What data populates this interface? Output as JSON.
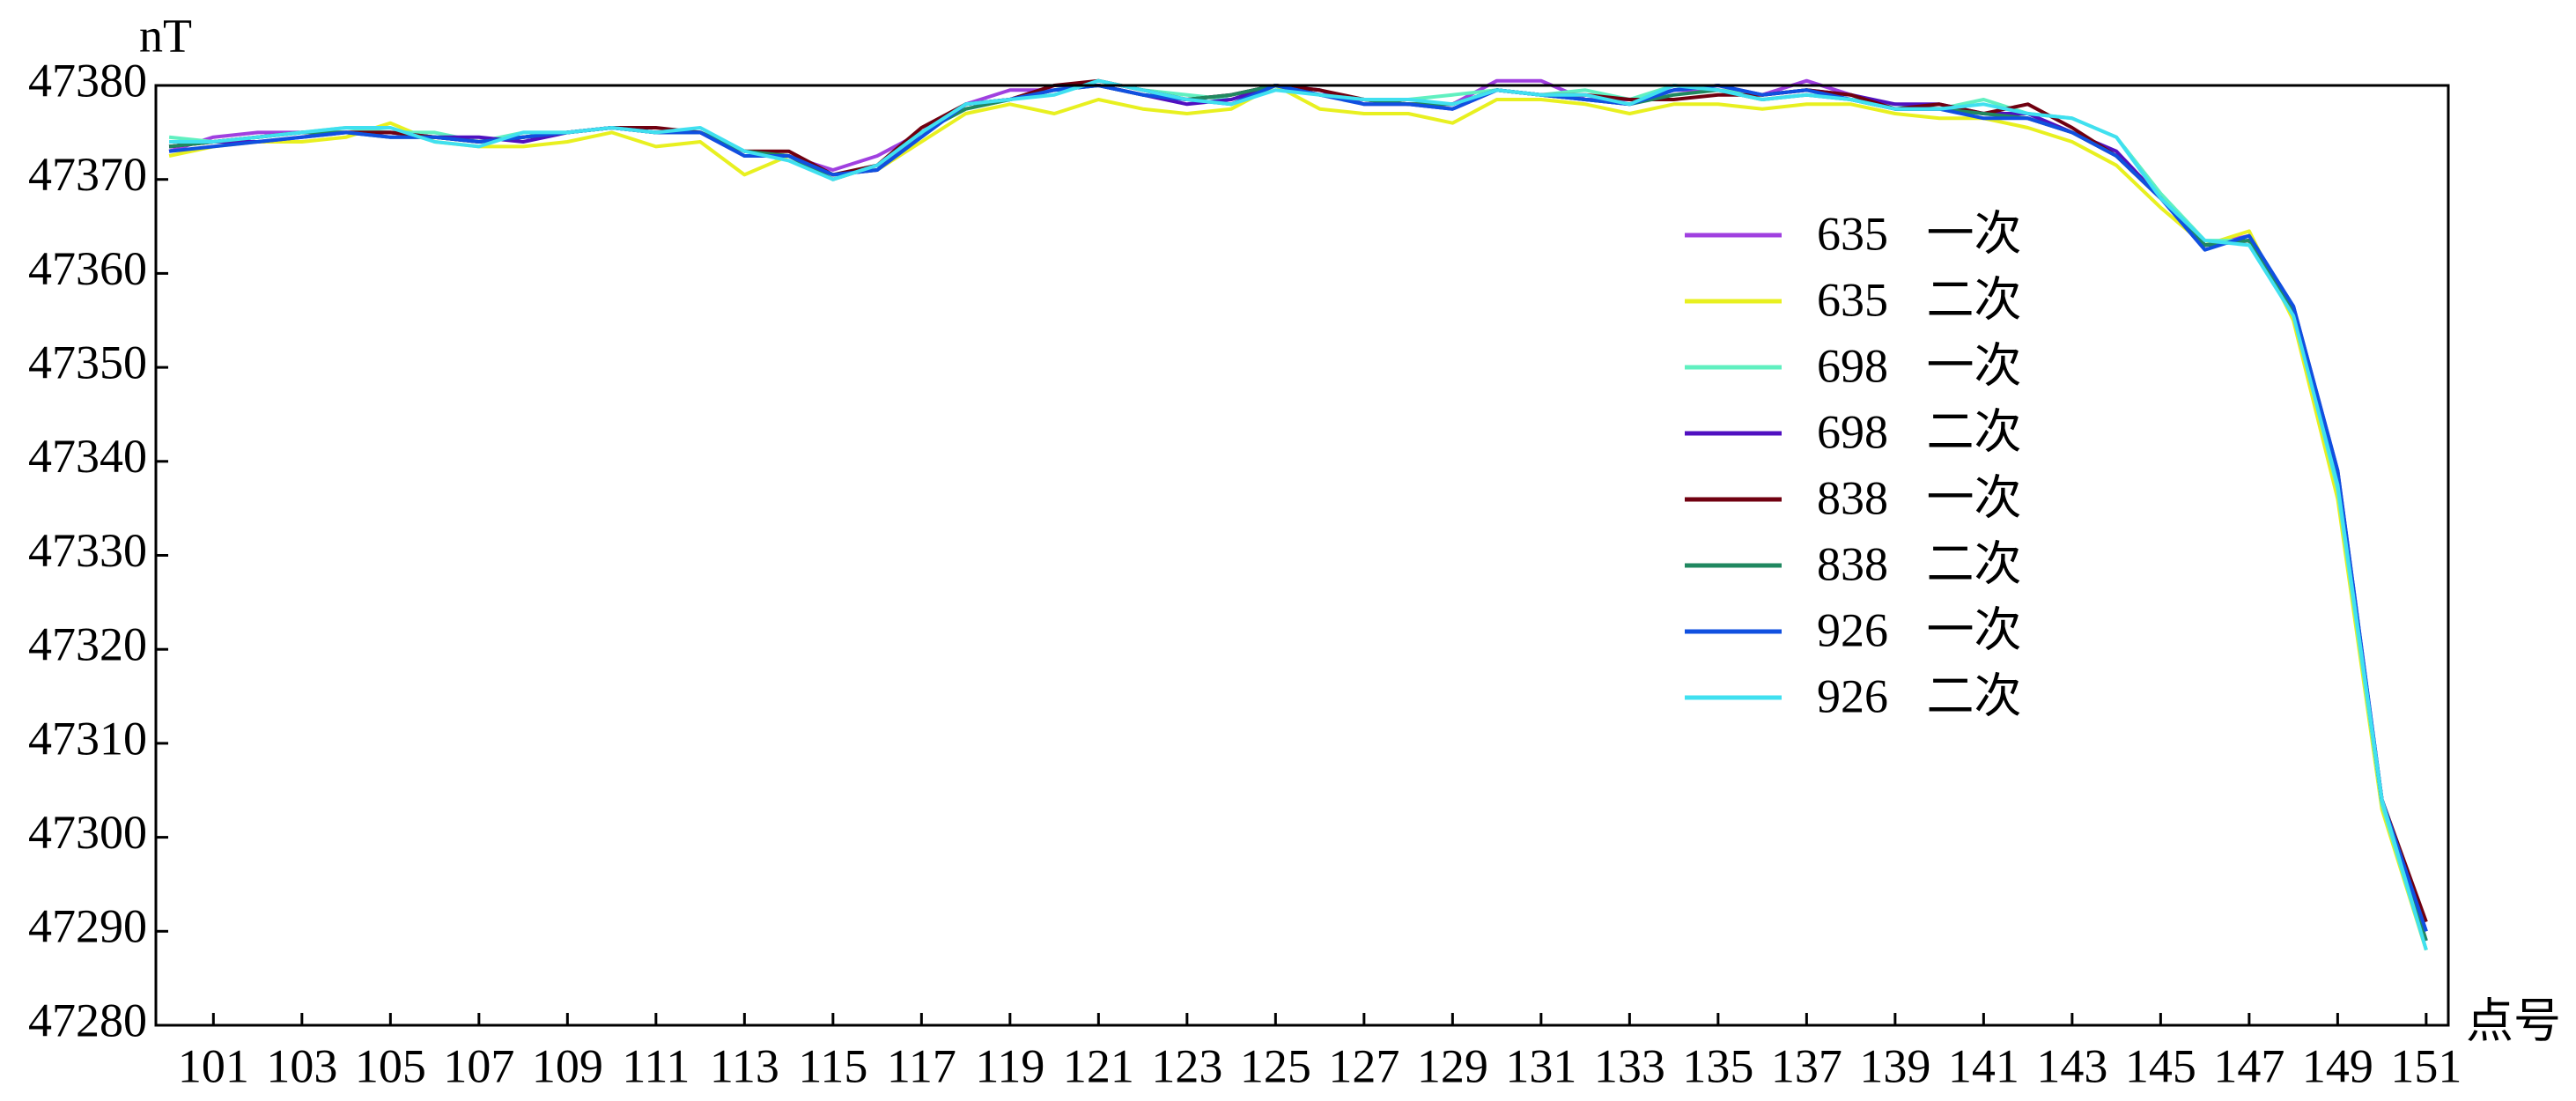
{
  "chart_data": {
    "type": "line",
    "y_label": "nT",
    "x_label": "点号",
    "x": [
      100,
      101,
      102,
      103,
      104,
      105,
      106,
      107,
      108,
      109,
      110,
      111,
      112,
      113,
      114,
      115,
      116,
      117,
      118,
      119,
      120,
      121,
      122,
      123,
      124,
      125,
      126,
      127,
      128,
      129,
      130,
      131,
      132,
      133,
      134,
      135,
      136,
      137,
      138,
      139,
      140,
      141,
      142,
      143,
      144,
      145,
      146,
      147,
      148,
      149,
      150,
      151
    ],
    "xlim": [
      99.7,
      151.5
    ],
    "xticks": [
      101,
      103,
      105,
      107,
      109,
      111,
      113,
      115,
      117,
      119,
      121,
      123,
      125,
      127,
      129,
      131,
      133,
      135,
      137,
      139,
      141,
      143,
      145,
      147,
      149,
      151
    ],
    "ylim": [
      47280,
      47380
    ],
    "yticks": [
      47280,
      47290,
      47300,
      47310,
      47320,
      47330,
      47340,
      47350,
      47360,
      47370,
      47380
    ],
    "legend": "center-right",
    "series": [
      {
        "name": "635 一次",
        "color": "#a040e0",
        "values": [
          47373,
          47374.5,
          47375,
          47375,
          47375,
          47375,
          47374.5,
          47374,
          47374.5,
          47375,
          47375.5,
          47375,
          47375,
          47373,
          47372.5,
          47371,
          47372.5,
          47375,
          47378,
          47379.5,
          47379.5,
          47380,
          47379,
          47378.5,
          47379,
          47380,
          47379,
          47378.5,
          47378,
          47378,
          47380.5,
          47380.5,
          47378.5,
          47378.5,
          47379.5,
          47379.5,
          47379,
          47380.5,
          47379,
          47377.5,
          47377.5,
          47377,
          47376.5,
          47375,
          47372.5,
          47368,
          47363,
          47364,
          47356,
          47338,
          47304,
          47289
        ]
      },
      {
        "name": "635 二次",
        "color": "#e8f020",
        "values": [
          47372.5,
          47373.5,
          47374,
          47374,
          47374.5,
          47376,
          47374,
          47373.5,
          47373.5,
          47374,
          47375,
          47373.5,
          47374,
          47370.5,
          47372.5,
          47370.5,
          47371,
          47374,
          47377,
          47378,
          47377,
          47378.5,
          47377.5,
          47377,
          47377.5,
          47380,
          47377.5,
          47377,
          47377,
          47376,
          47378.5,
          47378.5,
          47378,
          47377,
          47378,
          47378,
          47377.5,
          47378,
          47378,
          47377,
          47376.5,
          47376.5,
          47375.5,
          47374,
          47371.5,
          47367,
          47363,
          47364.5,
          47355,
          47336,
          47303,
          47288
        ]
      },
      {
        "name": "698 一次",
        "color": "#60f0c0",
        "values": [
          47374.5,
          47374,
          47374.5,
          47375,
          47375.5,
          47375,
          47375,
          47374,
          47375,
          47375,
          47375.5,
          47375,
          47375,
          47373,
          47372.5,
          47370.5,
          47371.5,
          47375,
          47377.5,
          47378.5,
          47379.5,
          47380.5,
          47379.5,
          47379,
          47378.5,
          47380,
          47379,
          47378.5,
          47378.5,
          47379,
          47379.5,
          47379,
          47379.5,
          47378.5,
          47380,
          47379.5,
          47379,
          47379.5,
          47378.5,
          47378,
          47377.5,
          47378.5,
          47377,
          47376.5,
          47374.5,
          47368.5,
          47363.5,
          47363.5,
          47356,
          47337,
          47303.5,
          47288
        ]
      },
      {
        "name": "698 二次",
        "color": "#5010c0",
        "values": [
          47373.5,
          47374,
          47374,
          47374.5,
          47375,
          47375,
          47374.5,
          47374.5,
          47374,
          47375,
          47375.5,
          47375,
          47375,
          47372.5,
          47372.5,
          47370.5,
          47371,
          47375,
          47378,
          47378.5,
          47380,
          47380,
          47379,
          47378,
          47378.5,
          47380,
          47379.5,
          47378,
          47378,
          47377.5,
          47379.5,
          47379,
          47378.5,
          47378,
          47379.5,
          47380,
          47379,
          47379.5,
          47379,
          47378,
          47378,
          47377,
          47377,
          47375,
          47373,
          47368,
          47363,
          47363.5,
          47356.5,
          47339,
          47304,
          47290
        ]
      },
      {
        "name": "838 一次",
        "color": "#700010",
        "values": [
          47373.5,
          47374,
          47374.5,
          47375,
          47375,
          47375,
          47374.5,
          47374,
          47374.5,
          47375,
          47375.5,
          47375.5,
          47375,
          47373,
          47373,
          47370.5,
          47371.5,
          47375.5,
          47378,
          47378.5,
          47380,
          47380.5,
          47379.5,
          47378.5,
          47379,
          47380,
          47379.5,
          47378.5,
          47378,
          47378,
          47379.5,
          47379,
          47379,
          47378.5,
          47378.5,
          47379,
          47379,
          47379.5,
          47379,
          47377.5,
          47378,
          47377,
          47378,
          47375.5,
          47372.5,
          47368,
          47363,
          47363.5,
          47356,
          47338,
          47304,
          47291
        ]
      },
      {
        "name": "838 二次",
        "color": "#208860",
        "values": [
          47373.5,
          47374,
          47374.5,
          47375,
          47375,
          47374.5,
          47374.5,
          47374,
          47374.5,
          47375,
          47375.5,
          47375,
          47375,
          47373,
          47372.5,
          47370,
          47371.5,
          47375,
          47377.5,
          47378.5,
          47379.5,
          47380,
          47379,
          47378.5,
          47379,
          47380,
          47379,
          47378.5,
          47378,
          47378,
          47379.5,
          47379,
          47378.5,
          47378,
          47379,
          47379.5,
          47378.5,
          47379,
          47378.5,
          47377.5,
          47377.5,
          47377,
          47376.5,
          47375,
          47372.5,
          47368,
          47363,
          47363.5,
          47356,
          47338,
          47304,
          47289
        ]
      },
      {
        "name": "926 一次",
        "color": "#1050e0",
        "values": [
          47373,
          47373.5,
          47374,
          47374.5,
          47375,
          47374.5,
          47374.5,
          47374,
          47374.5,
          47375,
          47375.5,
          47375,
          47375,
          47372.5,
          47372.5,
          47370.5,
          47371,
          47374.5,
          47378,
          47378.5,
          47379.5,
          47380,
          47379,
          47378.5,
          47378,
          47380,
          47379,
          47378,
          47378,
          47377.5,
          47379.5,
          47379,
          47378.5,
          47378,
          47379.5,
          47380,
          47379,
          47379.5,
          47378.5,
          47377.5,
          47377.5,
          47376.5,
          47376.5,
          47375,
          47372.5,
          47368,
          47362.5,
          47364,
          47356.5,
          47339,
          47304,
          47290
        ]
      },
      {
        "name": "926 二次",
        "color": "#40e0f0",
        "values": [
          47374,
          47374,
          47374.5,
          47375,
          47375.5,
          47375.5,
          47374,
          47373.5,
          47375,
          47375,
          47375.5,
          47375,
          47375.5,
          47373,
          47372,
          47370,
          47371.5,
          47375,
          47378,
          47378.5,
          47379,
          47380.5,
          47379.5,
          47378.5,
          47378,
          47379.5,
          47379,
          47378.5,
          47378.5,
          47378,
          47379.5,
          47379,
          47379,
          47378,
          47380,
          47379.5,
          47378.5,
          47379,
          47378.5,
          47377.5,
          47377.5,
          47378,
          47377,
          47376.5,
          47374.5,
          47368,
          47363.5,
          47363,
          47355.5,
          47337.5,
          47304,
          47288
        ]
      }
    ]
  }
}
